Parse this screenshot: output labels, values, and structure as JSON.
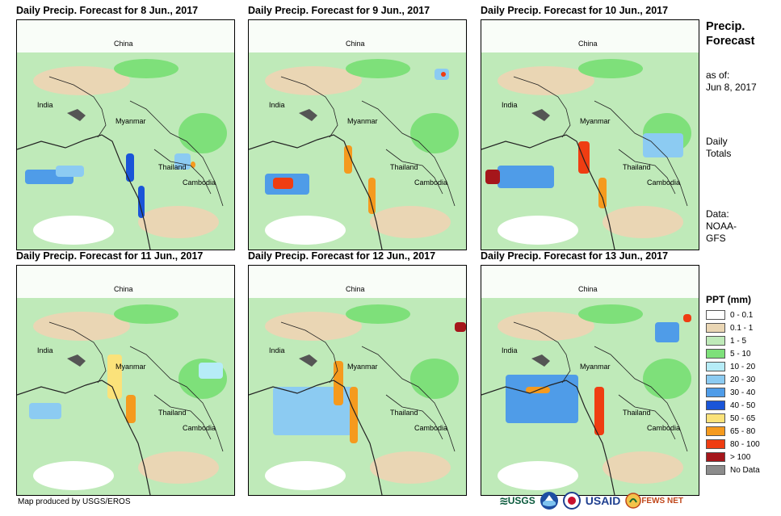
{
  "panels": [
    {
      "title": "Daily Precip. Forecast for 8 Jun., 2017"
    },
    {
      "title": "Daily Precip. Forecast for 9 Jun., 2017"
    },
    {
      "title": "Daily Precip. Forecast for 10 Jun., 2017"
    },
    {
      "title": "Daily Precip. Forecast for 11 Jun., 2017"
    },
    {
      "title": "Daily Precip. Forecast for 12 Jun., 2017"
    },
    {
      "title": "Daily Precip. Forecast for 13 Jun., 2017"
    }
  ],
  "map_labels": {
    "china": "China",
    "india": "India",
    "myanmar": "Myanmar",
    "thailand": "Thailand",
    "cambodia": "Cambodia"
  },
  "side": {
    "title_line1": "Precip.",
    "title_line2": "Forecast",
    "asof_line1": "as of:",
    "asof_line2": "Jun 8, 2017",
    "totals_line1": "Daily",
    "totals_line2": "Totals",
    "data_line1": "Data:",
    "data_line2": "NOAA-",
    "data_line3": "GFS"
  },
  "legend": {
    "title": "PPT (mm)",
    "items": [
      {
        "label": "0 - 0.1",
        "color": "#ffffff"
      },
      {
        "label": "0.1 - 1",
        "color": "#ead6b4"
      },
      {
        "label": "1 - 5",
        "color": "#bfeab9"
      },
      {
        "label": "5 - 10",
        "color": "#7ee07a"
      },
      {
        "label": "10 - 20",
        "color": "#b6ecf7"
      },
      {
        "label": "20 - 30",
        "color": "#8ccbf2"
      },
      {
        "label": "30 - 40",
        "color": "#4f9ce8"
      },
      {
        "label": "40 - 50",
        "color": "#1a55d8"
      },
      {
        "label": "50 - 65",
        "color": "#fbe27a"
      },
      {
        "label": "65 - 80",
        "color": "#f59a1e"
      },
      {
        "label": "80 - 100",
        "color": "#ef3d12"
      },
      {
        "label": "> 100",
        "color": "#a5161b"
      },
      {
        "label": "No Data",
        "color": "#8c8c8c"
      }
    ]
  },
  "footer": {
    "credit": "Map produced by USGS/EROS"
  },
  "logos": {
    "usgs": "USGS",
    "usaid": "USAID",
    "fewsnet": "FEWS NET"
  }
}
